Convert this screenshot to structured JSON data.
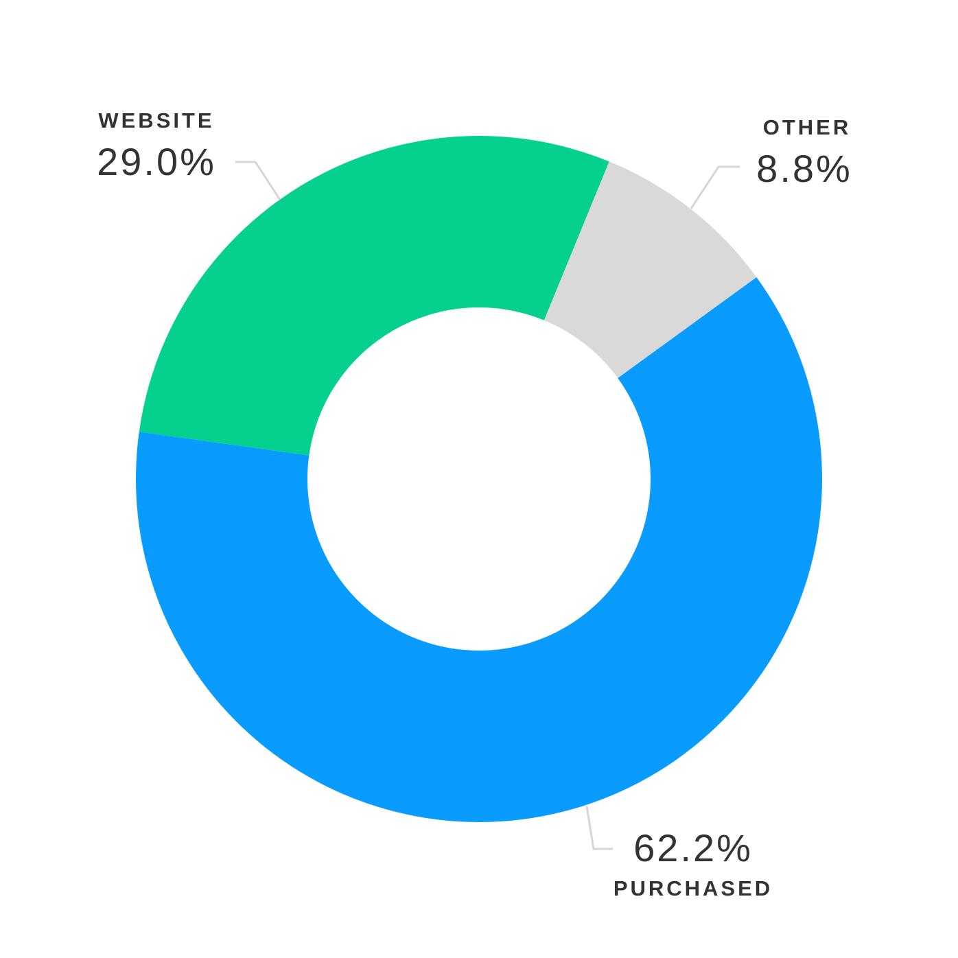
{
  "chart_data": {
    "type": "donut",
    "categories": [
      "WEBSITE",
      "OTHER",
      "PURCHASED"
    ],
    "values": [
      29.0,
      8.8,
      62.2
    ],
    "value_labels": [
      "29.0%",
      "8.8%",
      "62.2%"
    ],
    "colors": [
      "#05d08d",
      "#d9d9d9",
      "#0a9bff"
    ]
  }
}
